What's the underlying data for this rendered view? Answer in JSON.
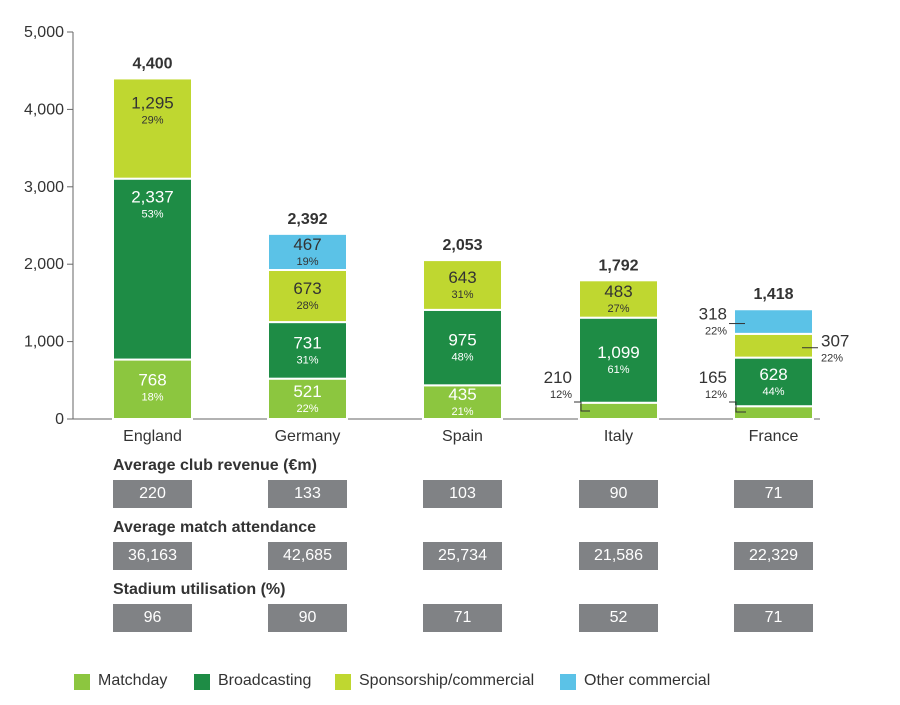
{
  "chart_data": {
    "type": "bar",
    "stacked": true,
    "categories": [
      "England",
      "Germany",
      "Spain",
      "Italy",
      "France"
    ],
    "ylim": [
      0,
      5000
    ],
    "yticks": [
      0,
      1000,
      2000,
      3000,
      4000,
      5000
    ],
    "ytick_labels": [
      "0",
      "1,000",
      "2,000",
      "3,000",
      "4,000",
      "5,000"
    ],
    "totals": [
      4400,
      2392,
      2053,
      1792,
      1418
    ],
    "total_labels": [
      "4,400",
      "2,392",
      "2,053",
      "1,792",
      "1,418"
    ],
    "colors": {
      "Matchday": "#8cc63f",
      "Broadcasting": "#1e8c45",
      "Sponsorship/commercial": "#bfd730",
      "Other commercial": "#5bc2e7"
    },
    "series": [
      {
        "name": "Matchday",
        "values": [
          768,
          521,
          435,
          210,
          165
        ],
        "value_labels": [
          "768",
          "521",
          "435",
          "210",
          "165"
        ],
        "pct_labels": [
          "18%",
          "22%",
          "21%",
          "12%",
          "12%"
        ]
      },
      {
        "name": "Broadcasting",
        "values": [
          2337,
          731,
          975,
          1099,
          628
        ],
        "value_labels": [
          "2,337",
          "731",
          "975",
          "1,099",
          "628"
        ],
        "pct_labels": [
          "53%",
          "31%",
          "48%",
          "61%",
          "44%"
        ]
      },
      {
        "name": "Sponsorship/commercial",
        "values": [
          1295,
          673,
          643,
          483,
          307
        ],
        "value_labels": [
          "1,295",
          "673",
          "643",
          "483",
          "307"
        ],
        "pct_labels": [
          "29%",
          "28%",
          "31%",
          "27%",
          "22%"
        ]
      },
      {
        "name": "Other commercial",
        "values": [
          0,
          467,
          0,
          0,
          318
        ],
        "value_labels": [
          "",
          "467",
          "",
          "",
          "318"
        ],
        "pct_labels": [
          "",
          "19%",
          "",
          "",
          "22%"
        ]
      }
    ]
  },
  "stats": {
    "revenue": {
      "title": "Average club revenue (€m)",
      "values": [
        "220",
        "133",
        "103",
        "90",
        "71"
      ]
    },
    "attendance": {
      "title": "Average match attendance",
      "values": [
        "36,163",
        "42,685",
        "25,734",
        "21,586",
        "22,329"
      ]
    },
    "utilisation": {
      "title": "Stadium utilisation (%)",
      "values": [
        "96",
        "90",
        "71",
        "52",
        "71"
      ]
    }
  },
  "legend": {
    "items": [
      {
        "label": "Matchday",
        "color": "#8cc63f"
      },
      {
        "label": "Broadcasting",
        "color": "#1e8c45"
      },
      {
        "label": "Sponsorship/commercial",
        "color": "#bfd730"
      },
      {
        "label": "Other commercial",
        "color": "#5bc2e7"
      }
    ]
  }
}
